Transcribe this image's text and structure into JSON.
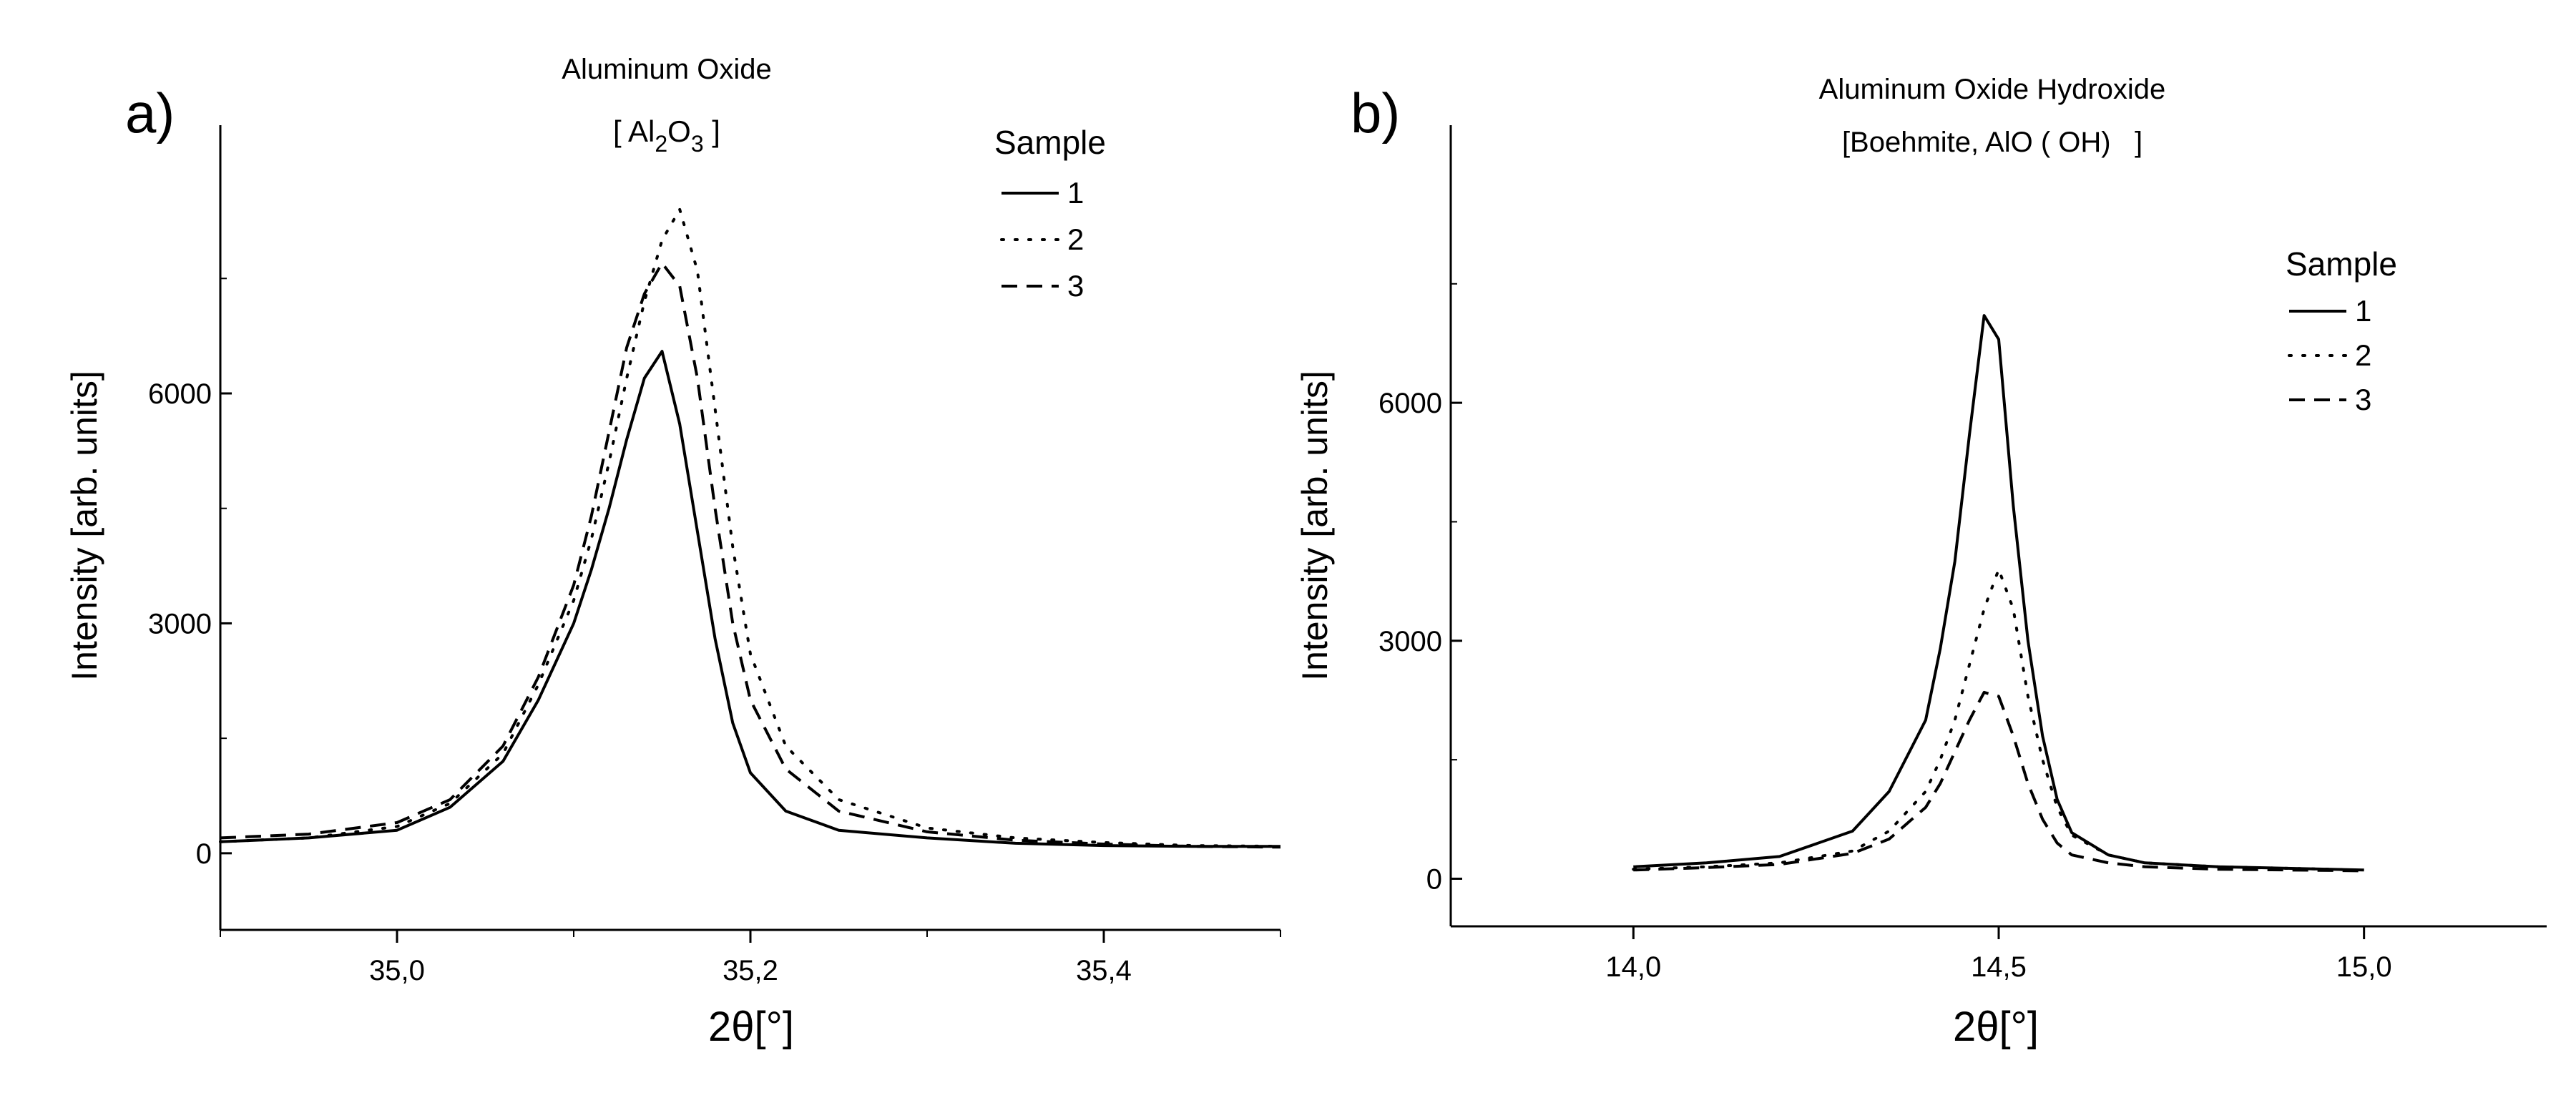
{
  "chart_data": [
    {
      "type": "line",
      "panel_label": "a)",
      "title": "Aluminum Oxide",
      "subtitle": {
        "open": "[ Al",
        "sub1": "2",
        "mid": "O",
        "sub2": "3",
        "close": " ]"
      },
      "xlabel": "2θ[°]",
      "ylabel": "Intensity [arb. units]",
      "xlim": [
        34.9,
        35.5
      ],
      "ylim": [
        -1000,
        9500
      ],
      "xticks": [
        35.0,
        35.2,
        35.4
      ],
      "xtick_labels": [
        "35,0",
        "35,2",
        "35,4"
      ],
      "yticks": [
        0,
        3000,
        6000
      ],
      "ytick_labels": [
        "0",
        "3000",
        "6000"
      ],
      "legend": {
        "title": "Sample",
        "position": "top-right",
        "labels": [
          "1",
          "2",
          "3"
        ]
      },
      "series": [
        {
          "name": "1",
          "style": "solid",
          "x": [
            34.9,
            34.95,
            35.0,
            35.03,
            35.06,
            35.08,
            35.1,
            35.11,
            35.12,
            35.13,
            35.14,
            35.15,
            35.16,
            35.17,
            35.18,
            35.19,
            35.2,
            35.22,
            35.25,
            35.3,
            35.35,
            35.4,
            35.45,
            35.5
          ],
          "y": [
            150,
            200,
            300,
            600,
            1200,
            2000,
            3000,
            3700,
            4500,
            5400,
            6200,
            6550,
            5600,
            4200,
            2800,
            1700,
            1050,
            550,
            300,
            200,
            130,
            100,
            90,
            90
          ]
        },
        {
          "name": "2",
          "style": "dotted",
          "x": [
            34.9,
            34.95,
            35.0,
            35.03,
            35.06,
            35.08,
            35.1,
            35.11,
            35.12,
            35.13,
            35.14,
            35.15,
            35.16,
            35.17,
            35.18,
            35.19,
            35.2,
            35.22,
            35.25,
            35.3,
            35.35,
            35.4,
            35.45,
            35.5
          ],
          "y": [
            150,
            200,
            350,
            650,
            1300,
            2200,
            3300,
            4100,
            5100,
            6200,
            7200,
            8000,
            8400,
            7600,
            5800,
            4000,
            2600,
            1400,
            700,
            330,
            200,
            140,
            100,
            90
          ]
        },
        {
          "name": "3",
          "style": "dashed",
          "x": [
            34.9,
            34.95,
            35.0,
            35.03,
            35.06,
            35.08,
            35.1,
            35.11,
            35.12,
            35.13,
            35.14,
            35.15,
            35.16,
            35.17,
            35.18,
            35.19,
            35.2,
            35.22,
            35.25,
            35.3,
            35.35,
            35.4,
            35.45,
            35.5
          ],
          "y": [
            200,
            250,
            400,
            700,
            1400,
            2300,
            3500,
            4400,
            5500,
            6600,
            7300,
            7700,
            7400,
            6200,
            4500,
            3000,
            2000,
            1100,
            550,
            280,
            170,
            120,
            90,
            80
          ]
        }
      ]
    },
    {
      "type": "line",
      "panel_label": "b)",
      "title": "Aluminum Oxide Hydroxide",
      "subtitle": "[Boehmite, AlO ( OH)   ]",
      "xlabel": "2θ[°]",
      "ylabel": "Intensity [arb. units]",
      "xlim": [
        13.75,
        15.25
      ],
      "ylim": [
        -600,
        9500
      ],
      "xticks": [
        14.0,
        14.5,
        15.0
      ],
      "xtick_labels": [
        "14,0",
        "14,5",
        "15,0"
      ],
      "yticks": [
        0,
        3000,
        6000
      ],
      "ytick_labels": [
        "0",
        "3000",
        "6000"
      ],
      "legend": {
        "title": "Sample",
        "position": "right",
        "labels": [
          "1",
          "2",
          "3"
        ]
      },
      "series": [
        {
          "name": "1",
          "style": "solid",
          "x": [
            14.0,
            14.1,
            14.2,
            14.3,
            14.35,
            14.4,
            14.42,
            14.44,
            14.46,
            14.48,
            14.5,
            14.52,
            14.54,
            14.56,
            14.58,
            14.6,
            14.65,
            14.7,
            14.8,
            14.9,
            15.0
          ],
          "y": [
            150,
            200,
            280,
            600,
            1100,
            2000,
            2900,
            4000,
            5600,
            7100,
            6800,
            4700,
            3000,
            1800,
            1000,
            580,
            300,
            200,
            150,
            130,
            110
          ]
        },
        {
          "name": "2",
          "style": "dotted",
          "x": [
            14.0,
            14.1,
            14.2,
            14.3,
            14.35,
            14.4,
            14.42,
            14.44,
            14.46,
            14.48,
            14.5,
            14.52,
            14.54,
            14.56,
            14.58,
            14.6,
            14.65,
            14.7,
            14.8,
            14.9,
            15.0
          ],
          "y": [
            120,
            150,
            200,
            350,
            600,
            1100,
            1500,
            2000,
            2700,
            3400,
            3900,
            3400,
            2300,
            1500,
            900,
            550,
            300,
            200,
            150,
            130,
            110
          ]
        },
        {
          "name": "3",
          "style": "dashed",
          "x": [
            14.0,
            14.1,
            14.2,
            14.3,
            14.35,
            14.4,
            14.42,
            14.44,
            14.46,
            14.48,
            14.5,
            14.52,
            14.54,
            14.56,
            14.58,
            14.6,
            14.65,
            14.7,
            14.8,
            14.9,
            15.0
          ],
          "y": [
            110,
            140,
            180,
            320,
            500,
            900,
            1200,
            1600,
            2000,
            2350,
            2300,
            1800,
            1200,
            750,
            450,
            300,
            200,
            150,
            120,
            110,
            100
          ]
        }
      ]
    }
  ]
}
